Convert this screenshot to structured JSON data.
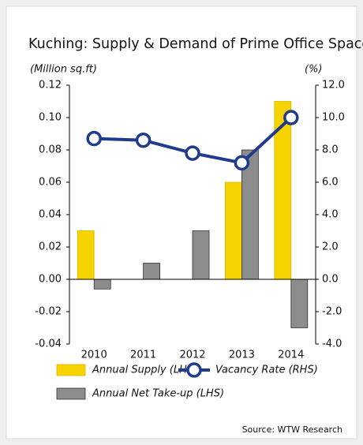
{
  "chart_data": {
    "type": "bar",
    "title": "Kuching: Supply & Demand of Prime Office Space",
    "y_label": "(Million sq.ft)",
    "y2_label": "(%)",
    "source": "Source: WTW Research",
    "categories": [
      "2010",
      "2011",
      "2012",
      "2013",
      "2014"
    ],
    "series": [
      {
        "name": "Annual Supply (LHS)",
        "color": "#f7d300",
        "values": [
          0.03,
          0,
          0,
          0.06,
          0.11
        ]
      },
      {
        "name": "Annual Net Take-up (LHS)",
        "color": "#8c8c8c",
        "values": [
          -0.006,
          0.01,
          0.03,
          0.08,
          -0.03
        ]
      },
      {
        "name": "Vacancy Rate (RHS)",
        "type": "line",
        "axis": "y2",
        "color": "#1f3c8c",
        "values": [
          8.7,
          8.6,
          7.8,
          7.2,
          10.0
        ]
      }
    ],
    "ylim": [
      -0.04,
      0.12
    ],
    "yticks": [
      -0.04,
      -0.02,
      {
        "value": 0,
        "label": "0.00"
      },
      0.02,
      0.04,
      0.06,
      0.08,
      {
        "value": 0.1,
        "label": "0.10"
      },
      0.12
    ],
    "y2lim": [
      -4,
      12
    ],
    "y2ticks": [
      {
        "value": -4,
        "label": "-4.0"
      },
      {
        "value": -2,
        "label": "-2.0"
      },
      {
        "value": 0,
        "label": "0.0"
      },
      {
        "value": 2,
        "label": "2.0"
      },
      {
        "value": 4,
        "label": "4.0"
      },
      {
        "value": 6,
        "label": "6.0"
      },
      {
        "value": 8,
        "label": "8.0"
      },
      {
        "value": 10,
        "label": "10.0"
      },
      {
        "value": 12,
        "label": "12.0"
      }
    ],
    "legend": "bottom"
  }
}
